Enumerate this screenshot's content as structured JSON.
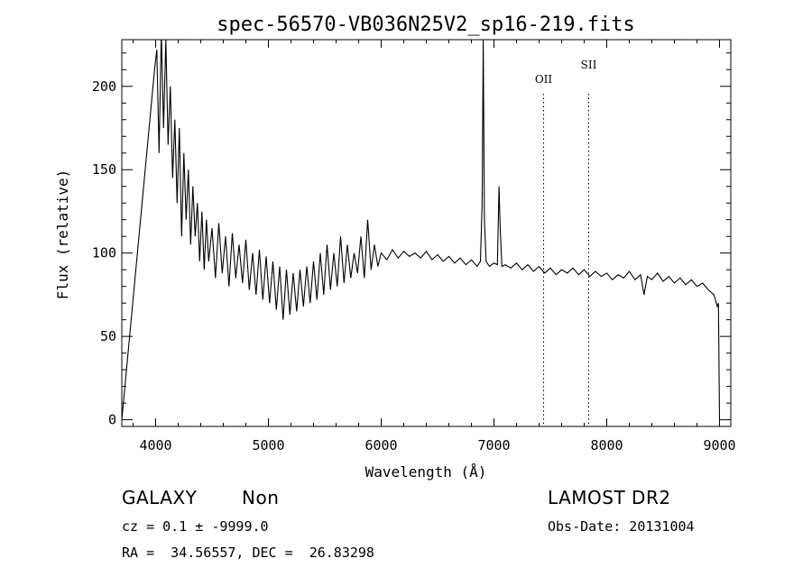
{
  "chart_data": {
    "type": "line",
    "title": "spec-56570-VB036N25V2_sp16-219.fits",
    "xlabel": "Wavelength (Å)",
    "ylabel": "Flux (relative)",
    "xlim": [
      3700,
      9100
    ],
    "ylim": [
      -4,
      228
    ],
    "x_ticks": [
      4000,
      5000,
      6000,
      7000,
      8000,
      9000
    ],
    "y_ticks": [
      0,
      50,
      100,
      150,
      200
    ],
    "grid": false,
    "series": [
      {
        "points": [
          [
            3700,
            0
          ],
          [
            3990,
            210
          ],
          [
            4010,
            222
          ],
          [
            4030,
            160
          ],
          [
            4050,
            232
          ],
          [
            4070,
            175
          ],
          [
            4090,
            228
          ],
          [
            4110,
            165
          ],
          [
            4130,
            200
          ],
          [
            4150,
            145
          ],
          [
            4170,
            180
          ],
          [
            4190,
            130
          ],
          [
            4210,
            175
          ],
          [
            4230,
            110
          ],
          [
            4250,
            160
          ],
          [
            4270,
            120
          ],
          [
            4290,
            150
          ],
          [
            4310,
            105
          ],
          [
            4330,
            140
          ],
          [
            4350,
            110
          ],
          [
            4370,
            130
          ],
          [
            4390,
            95
          ],
          [
            4410,
            125
          ],
          [
            4430,
            90
          ],
          [
            4450,
            120
          ],
          [
            4470,
            95
          ],
          [
            4500,
            115
          ],
          [
            4530,
            85
          ],
          [
            4560,
            118
          ],
          [
            4590,
            88
          ],
          [
            4620,
            110
          ],
          [
            4650,
            80
          ],
          [
            4680,
            112
          ],
          [
            4710,
            85
          ],
          [
            4740,
            105
          ],
          [
            4770,
            82
          ],
          [
            4800,
            108
          ],
          [
            4830,
            78
          ],
          [
            4860,
            100
          ],
          [
            4890,
            75
          ],
          [
            4920,
            102
          ],
          [
            4950,
            72
          ],
          [
            4980,
            98
          ],
          [
            5010,
            70
          ],
          [
            5040,
            95
          ],
          [
            5070,
            66
          ],
          [
            5100,
            92
          ],
          [
            5130,
            60
          ],
          [
            5160,
            90
          ],
          [
            5190,
            63
          ],
          [
            5220,
            88
          ],
          [
            5250,
            65
          ],
          [
            5280,
            90
          ],
          [
            5310,
            68
          ],
          [
            5340,
            92
          ],
          [
            5370,
            70
          ],
          [
            5400,
            95
          ],
          [
            5430,
            72
          ],
          [
            5460,
            100
          ],
          [
            5490,
            75
          ],
          [
            5520,
            105
          ],
          [
            5550,
            78
          ],
          [
            5580,
            100
          ],
          [
            5610,
            80
          ],
          [
            5640,
            110
          ],
          [
            5670,
            82
          ],
          [
            5700,
            105
          ],
          [
            5730,
            85
          ],
          [
            5760,
            100
          ],
          [
            5790,
            88
          ],
          [
            5820,
            110
          ],
          [
            5850,
            85
          ],
          [
            5880,
            120
          ],
          [
            5910,
            90
          ],
          [
            5940,
            105
          ],
          [
            5970,
            92
          ],
          [
            6000,
            100
          ],
          [
            6050,
            96
          ],
          [
            6100,
            102
          ],
          [
            6150,
            97
          ],
          [
            6200,
            101
          ],
          [
            6250,
            98
          ],
          [
            6300,
            100
          ],
          [
            6350,
            97
          ],
          [
            6400,
            101
          ],
          [
            6450,
            96
          ],
          [
            6500,
            99
          ],
          [
            6550,
            95
          ],
          [
            6600,
            98
          ],
          [
            6650,
            94
          ],
          [
            6700,
            97
          ],
          [
            6750,
            93
          ],
          [
            6800,
            96
          ],
          [
            6850,
            92
          ],
          [
            6880,
            95
          ],
          [
            6895,
            130
          ],
          [
            6905,
            228
          ],
          [
            6915,
            120
          ],
          [
            6930,
            95
          ],
          [
            6960,
            92
          ],
          [
            7000,
            94
          ],
          [
            7030,
            93
          ],
          [
            7045,
            140
          ],
          [
            7055,
            115
          ],
          [
            7070,
            92
          ],
          [
            7100,
            93
          ],
          [
            7150,
            91
          ],
          [
            7200,
            94
          ],
          [
            7250,
            90
          ],
          [
            7300,
            93
          ],
          [
            7350,
            89
          ],
          [
            7400,
            92
          ],
          [
            7450,
            88
          ],
          [
            7500,
            91
          ],
          [
            7550,
            87
          ],
          [
            7600,
            90
          ],
          [
            7650,
            88
          ],
          [
            7700,
            91
          ],
          [
            7750,
            87
          ],
          [
            7800,
            90
          ],
          [
            7850,
            86
          ],
          [
            7900,
            89
          ],
          [
            7950,
            86
          ],
          [
            8000,
            88
          ],
          [
            8050,
            84
          ],
          [
            8100,
            87
          ],
          [
            8150,
            85
          ],
          [
            8200,
            89
          ],
          [
            8250,
            84
          ],
          [
            8300,
            87
          ],
          [
            8330,
            75
          ],
          [
            8360,
            86
          ],
          [
            8400,
            84
          ],
          [
            8450,
            88
          ],
          [
            8500,
            83
          ],
          [
            8550,
            86
          ],
          [
            8600,
            82
          ],
          [
            8650,
            85
          ],
          [
            8700,
            81
          ],
          [
            8750,
            84
          ],
          [
            8800,
            80
          ],
          [
            8850,
            82
          ],
          [
            8900,
            78
          ],
          [
            8950,
            75
          ],
          [
            8980,
            68
          ],
          [
            8990,
            70
          ],
          [
            9000,
            0
          ]
        ]
      }
    ],
    "annotations": [
      {
        "label": "OII",
        "x": 7440,
        "style": "dotted"
      },
      {
        "label": "SII",
        "x": 7840,
        "style": "dotted"
      }
    ]
  },
  "info": {
    "object_class": "GALAXY",
    "subclass": "Non",
    "cz": "cz = 0.1 ± -9999.0",
    "coords": "RA =  34.56557, DEC =  26.83298",
    "survey": "LAMOST DR2",
    "obs_date": "Obs-Date: 20131004"
  }
}
